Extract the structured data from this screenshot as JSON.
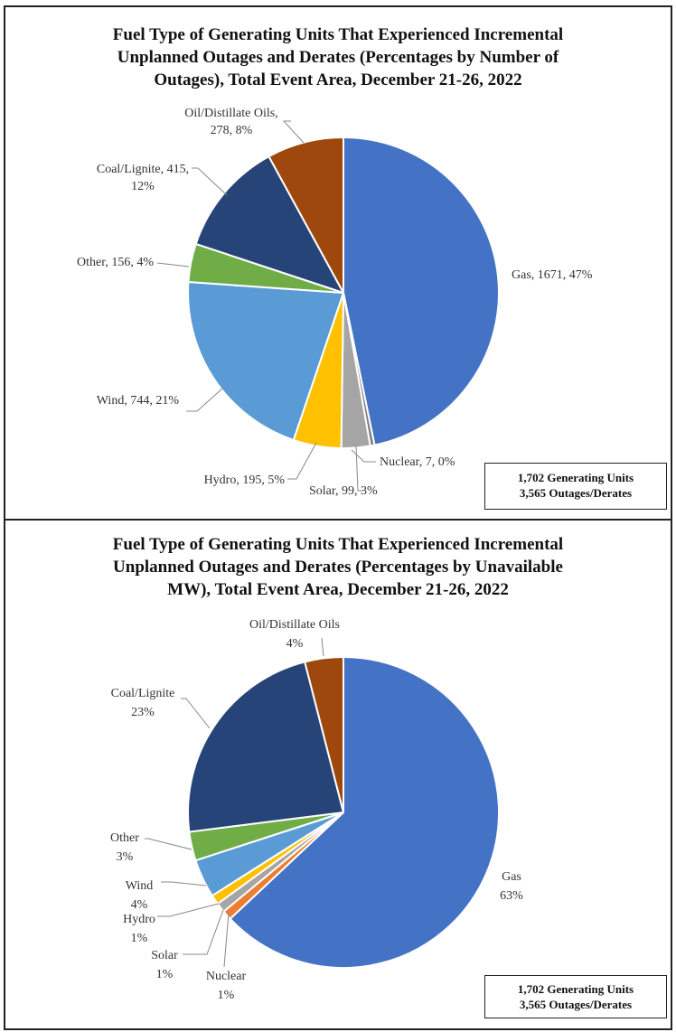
{
  "colors": {
    "Gas": "#4472C4",
    "Nuclear": "#A5A5A5",
    "Solar": "#FFC000",
    "Hydro": "#FFC000",
    "Wind": "#5B9BD5",
    "Other": "#70AD47",
    "Coal/Lignite": "#264478",
    "Oil/Distillate Oils": "#9E480E"
  },
  "chart_data": [
    {
      "type": "pie",
      "title_lines": [
        "Fuel Type of Generating Units That Experienced Incremental",
        "Unplanned Outages and Derates (Percentages by Number of",
        "Outages), Total Event Area, December 21-26, 2022"
      ],
      "slices": [
        {
          "name": "Gas",
          "count": 1671,
          "percent": 47,
          "color": "#4472C4",
          "label_lines": [
            "Gas, 1671, 47%"
          ]
        },
        {
          "name": "Nuclear",
          "count": 7,
          "percent": 0,
          "color": "#7F7F7F",
          "label_lines": [
            "Nuclear, 7, 0%"
          ]
        },
        {
          "name": "Solar",
          "count": 99,
          "percent": 3,
          "color": "#A5A5A5",
          "label_lines": [
            "Solar, 99, 3%"
          ]
        },
        {
          "name": "Hydro",
          "count": 195,
          "percent": 5,
          "color": "#FFC000",
          "label_lines": [
            "Hydro, 195, 5%"
          ]
        },
        {
          "name": "Wind",
          "count": 744,
          "percent": 21,
          "color": "#5B9BD5",
          "label_lines": [
            "Wind, 744, 21%"
          ]
        },
        {
          "name": "Other",
          "count": 156,
          "percent": 4,
          "color": "#70AD47",
          "label_lines": [
            "Other, 156, 4%"
          ]
        },
        {
          "name": "Coal/Lignite",
          "count": 415,
          "percent": 12,
          "color": "#264478",
          "label_lines": [
            "Coal/Lignite, 415,",
            "12%"
          ]
        },
        {
          "name": "Oil/Distillate Oils",
          "count": 278,
          "percent": 8,
          "color": "#9E480E",
          "label_lines": [
            "Oil/Distillate Oils,",
            "278, 8%"
          ]
        }
      ],
      "summary_lines": [
        "1,702 Generating Units",
        "3,565 Outages/Derates"
      ]
    },
    {
      "type": "pie",
      "title_lines": [
        "Fuel Type of Generating Units That Experienced Incremental",
        "Unplanned Outages and Derates (Percentages by Unavailable",
        "MW), Total Event Area, December 21-26, 2022"
      ],
      "slices": [
        {
          "name": "Gas",
          "percent": 63,
          "color": "#4472C4",
          "label_lines": [
            "Gas",
            "63%"
          ]
        },
        {
          "name": "Nuclear",
          "percent": 1,
          "color": "#ED7D31",
          "label_lines": [
            "Nuclear",
            "1%"
          ]
        },
        {
          "name": "Solar",
          "percent": 1,
          "color": "#A5A5A5",
          "label_lines": [
            "Solar",
            "1%"
          ]
        },
        {
          "name": "Hydro",
          "percent": 1,
          "color": "#FFC000",
          "label_lines": [
            "Hydro",
            "1%"
          ]
        },
        {
          "name": "Wind",
          "percent": 4,
          "color": "#5B9BD5",
          "label_lines": [
            "Wind",
            "4%"
          ]
        },
        {
          "name": "Other",
          "percent": 3,
          "color": "#70AD47",
          "label_lines": [
            "Other",
            "3%"
          ]
        },
        {
          "name": "Coal/Lignite",
          "percent": 23,
          "color": "#264478",
          "label_lines": [
            "Coal/Lignite",
            "23%"
          ]
        },
        {
          "name": "Oil/Distillate Oils",
          "percent": 4,
          "color": "#9E480E",
          "label_lines": [
            "Oil/Distillate Oils",
            "4%"
          ]
        }
      ],
      "summary_lines": [
        "1,702 Generating Units",
        "3,565 Outages/Derates"
      ]
    }
  ]
}
